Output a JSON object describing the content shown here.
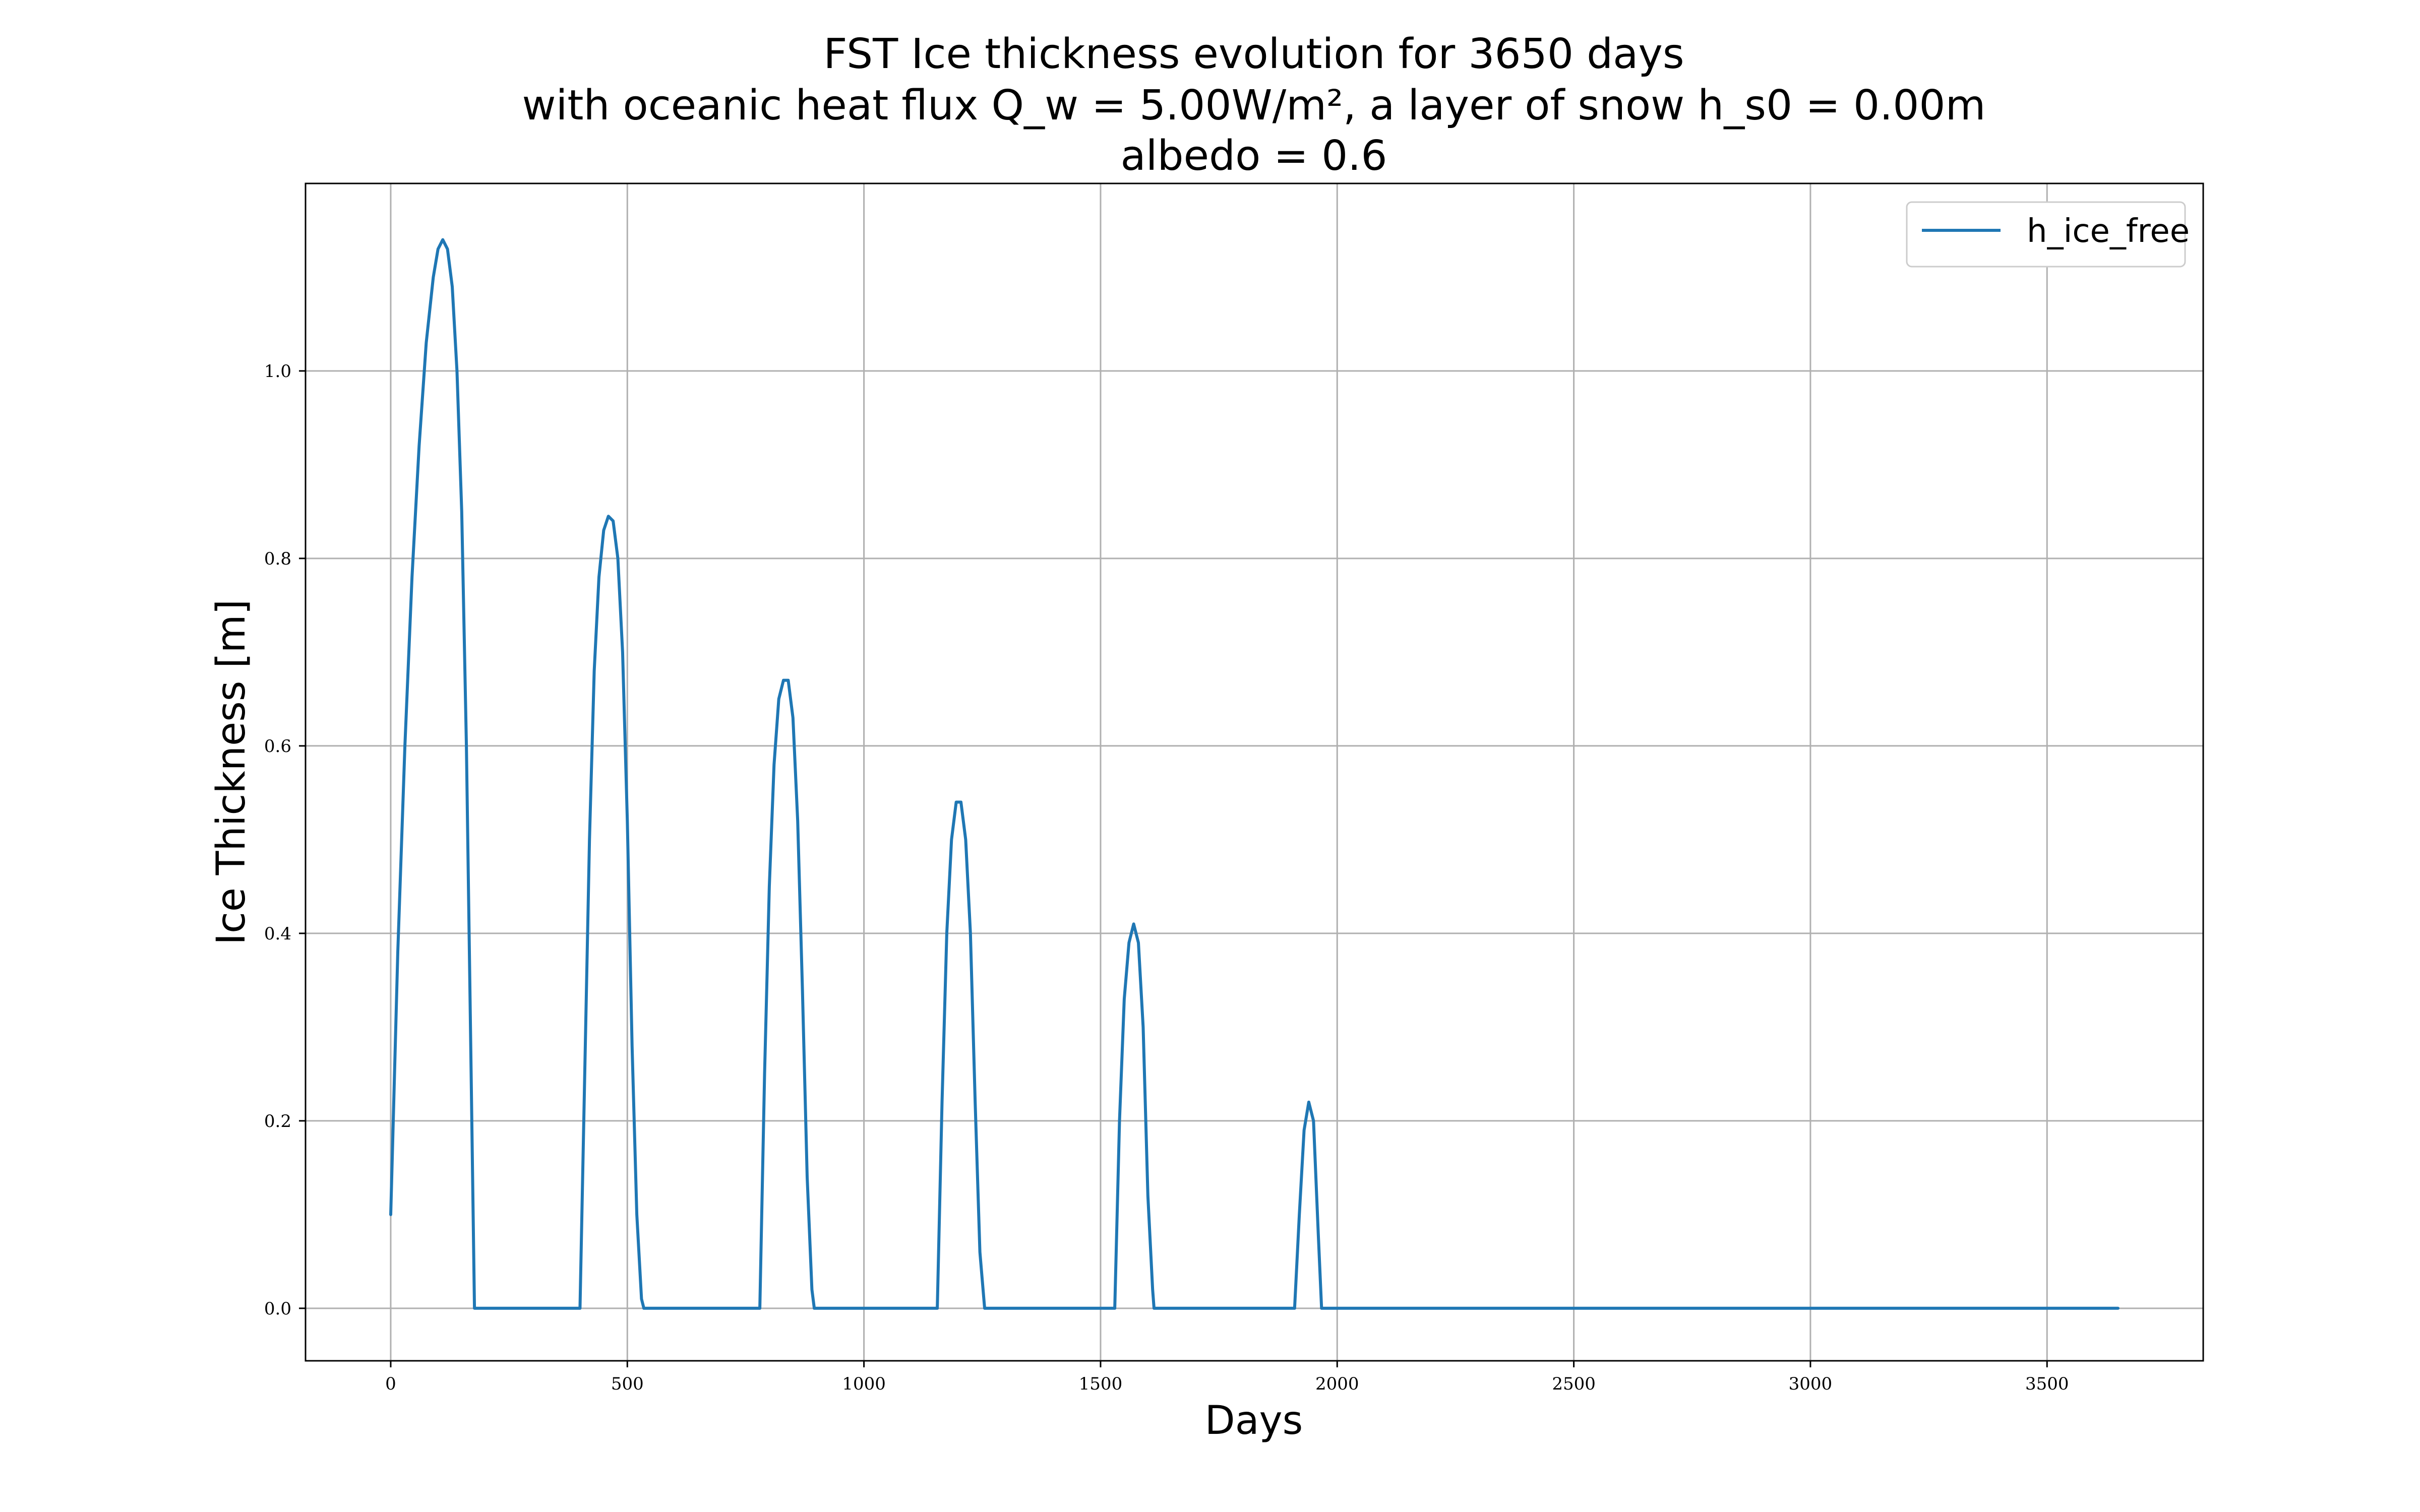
{
  "chart_data": {
    "type": "line",
    "title_lines": [
      "FST Ice thickness evolution for 3650 days",
      "with oceanic heat flux Q_w = 5.00W/m², a layer of snow h_s0 = 0.00m",
      "albedo = 0.6"
    ],
    "xlabel": "Days",
    "ylabel": "Ice Thickness [m]",
    "xlim": [
      -180,
      3830
    ],
    "ylim": [
      -0.056,
      1.2
    ],
    "xticks": [
      0,
      500,
      1000,
      1500,
      2000,
      2500,
      3000,
      3500
    ],
    "xtick_labels": [
      "0",
      "500",
      "1000",
      "1500",
      "2000",
      "2500",
      "3000",
      "3500"
    ],
    "yticks": [
      0.0,
      0.2,
      0.4,
      0.6,
      0.8,
      1.0
    ],
    "ytick_labels": [
      "0.0",
      "0.2",
      "0.4",
      "0.6",
      "0.8",
      "1.0"
    ],
    "grid": true,
    "legend_position": "top-right",
    "series": [
      {
        "name": "h_ice_free",
        "color": "#1f77b4",
        "x": [
          0,
          15,
          30,
          45,
          60,
          75,
          90,
          100,
          110,
          120,
          130,
          140,
          150,
          160,
          170,
          177,
          400,
          410,
          420,
          430,
          440,
          450,
          460,
          470,
          480,
          490,
          500,
          510,
          520,
          530,
          535,
          780,
          790,
          800,
          810,
          820,
          830,
          840,
          850,
          860,
          870,
          880,
          890,
          895,
          1155,
          1165,
          1175,
          1185,
          1195,
          1205,
          1215,
          1225,
          1235,
          1245,
          1255,
          1258,
          1530,
          1540,
          1550,
          1560,
          1570,
          1580,
          1590,
          1600,
          1610,
          1613,
          1910,
          1920,
          1930,
          1940,
          1950,
          1960,
          1967,
          3650
        ],
        "y": [
          0.1,
          0.38,
          0.6,
          0.78,
          0.92,
          1.03,
          1.1,
          1.13,
          1.14,
          1.13,
          1.09,
          1.0,
          0.85,
          0.6,
          0.25,
          0.0,
          0.0,
          0.25,
          0.5,
          0.68,
          0.78,
          0.83,
          0.845,
          0.84,
          0.8,
          0.7,
          0.52,
          0.28,
          0.1,
          0.01,
          0.0,
          0.0,
          0.25,
          0.45,
          0.58,
          0.65,
          0.67,
          0.67,
          0.63,
          0.52,
          0.34,
          0.14,
          0.02,
          0.0,
          0.0,
          0.22,
          0.4,
          0.5,
          0.54,
          0.54,
          0.5,
          0.4,
          0.22,
          0.06,
          0.0,
          0.0,
          0.0,
          0.2,
          0.33,
          0.39,
          0.41,
          0.39,
          0.3,
          0.12,
          0.02,
          0.0,
          0.0,
          0.1,
          0.19,
          0.22,
          0.2,
          0.08,
          0.0,
          0.0
        ]
      }
    ]
  }
}
